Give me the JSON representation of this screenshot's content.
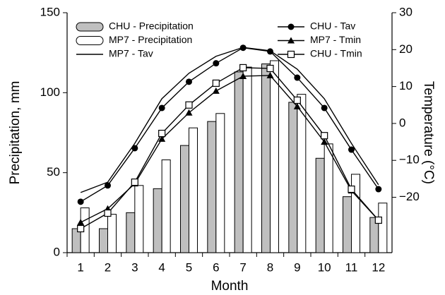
{
  "chart_data": {
    "type": "bar",
    "categories": [
      "1",
      "2",
      "3",
      "4",
      "5",
      "6",
      "7",
      "8",
      "9",
      "10",
      "11",
      "12"
    ],
    "xlabel": "Month",
    "ylabel": "Precipitation, mm",
    "y2label": "Temperature (°C)",
    "ylim": [
      0,
      150
    ],
    "yticks": [
      0,
      50,
      100,
      150
    ],
    "y2lim": [
      -35,
      30
    ],
    "y2ticks": [
      {
        "value": -20,
        "label": "−20"
      },
      {
        "value": -10,
        "label": "−10"
      },
      0,
      10,
      20,
      30
    ],
    "series": [
      {
        "name": "CHU - Precipitation",
        "type": "bar",
        "color": "#bfbfbf",
        "values": [
          15,
          15,
          25,
          40,
          67,
          82,
          113,
          118,
          94,
          59,
          35,
          22
        ]
      },
      {
        "name": "MP7 - Precipitation",
        "type": "bar",
        "color": "#ffffff",
        "values": [
          28,
          24,
          42,
          58,
          78,
          87,
          116,
          120,
          99,
          68,
          49,
          31
        ]
      },
      {
        "name": "MP7 - Tav",
        "type": "line",
        "marker": "none",
        "axis": "y2",
        "color": "#000000",
        "values": [
          -18.7,
          -15.9,
          -5.4,
          6.7,
          13.6,
          18.2,
          20.6,
          19.7,
          14.7,
          6.7,
          -5.4,
          -16.6
        ]
      },
      {
        "name": "CHU - Tav",
        "type": "line",
        "marker": "circle",
        "axis": "y2",
        "color": "#000000",
        "values": [
          -21.2,
          -16.8,
          -6.7,
          4.2,
          11.3,
          16.3,
          20.5,
          19.5,
          12.4,
          4.2,
          -7.1,
          -17.8
        ]
      },
      {
        "name": "MP7 - Tmin",
        "type": "line",
        "marker": "triangle",
        "axis": "y2",
        "color": "#000000",
        "values": [
          -26.8,
          -23.1,
          -16.3,
          -4.2,
          2.9,
          8.8,
          12.8,
          13,
          4.6,
          -5,
          -18.2,
          -26.2
        ]
      },
      {
        "name": "CHU - Tmin",
        "type": "line",
        "marker": "square",
        "axis": "y2",
        "color": "#000000",
        "values": [
          -28.5,
          -24.3,
          -15.9,
          -2.7,
          5,
          10.9,
          15.1,
          14.9,
          6.3,
          -3.3,
          -17.8,
          -26.2
        ]
      }
    ]
  }
}
